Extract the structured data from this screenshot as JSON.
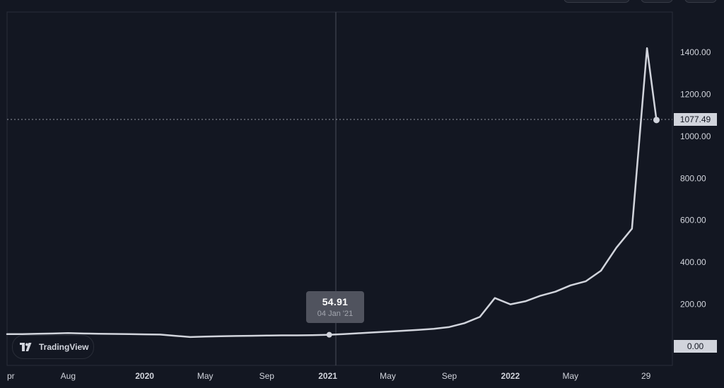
{
  "chart_data": {
    "type": "line",
    "x": [
      "2019-04",
      "2019-05",
      "2019-06",
      "2019-07",
      "2019-08",
      "2019-09",
      "2019-10",
      "2019-11",
      "2019-12",
      "2020-01",
      "2020-02",
      "2020-03",
      "2020-04",
      "2020-05",
      "2020-06",
      "2020-07",
      "2020-08",
      "2020-09",
      "2020-10",
      "2020-11",
      "2020-12",
      "2021-01",
      "2021-02",
      "2021-03",
      "2021-04",
      "2021-05",
      "2021-06",
      "2021-07",
      "2021-08",
      "2021-09",
      "2021-10",
      "2021-11",
      "2021-12",
      "2022-01",
      "2022-02",
      "2022-03",
      "2022-04",
      "2022-05",
      "2022-06",
      "2022-07",
      "2022-08",
      "2022-09",
      "2022-10",
      "2022-10-20"
    ],
    "series": [
      {
        "values": [
          58,
          58,
          60,
          61,
          63,
          61,
          60,
          59,
          58,
          57,
          56,
          50,
          44,
          46,
          48,
          49,
          50,
          51,
          52,
          52,
          53,
          55,
          58,
          62,
          66,
          70,
          74,
          78,
          83,
          92,
          110,
          140,
          230,
          200,
          215,
          240,
          260,
          290,
          310,
          360,
          470,
          560,
          1420,
          1077.49
        ]
      }
    ],
    "xlim": [
      "2019-04",
      "2022-11"
    ],
    "ylim": [
      0,
      1500
    ],
    "y_ticks": [
      0,
      200,
      400,
      600,
      800,
      1000,
      1200,
      1400
    ],
    "y_tick_labels": [
      "0.00",
      "200.00",
      "400.00",
      "600.00",
      "800.00",
      "1000.00",
      "1200.00",
      "1400.00"
    ],
    "x_tick_labels": [
      {
        "label": "pr",
        "date": "2019-04"
      },
      {
        "label": "Aug",
        "date": "2019-08"
      },
      {
        "label": "2020",
        "date": "2020-01"
      },
      {
        "label": "May",
        "date": "2020-05"
      },
      {
        "label": "Sep",
        "date": "2020-09"
      },
      {
        "label": "2021",
        "date": "2021-01"
      },
      {
        "label": "May",
        "date": "2021-05"
      },
      {
        "label": "Sep",
        "date": "2021-09"
      },
      {
        "label": "2022",
        "date": "2022-01"
      },
      {
        "label": "May",
        "date": "2022-05"
      },
      {
        "label": "29",
        "date": "2022-09-29"
      }
    ],
    "last_price": "1077.49",
    "zero_label": "0.00",
    "crosshair": {
      "date": "2021-01-04",
      "value": 54.91,
      "value_label": "54.91",
      "date_label": "04 Jan '21"
    },
    "grid": false,
    "line_color": "#d1d4dc",
    "background_color": "#131722"
  },
  "branding": {
    "logo_text": "TradingView"
  }
}
